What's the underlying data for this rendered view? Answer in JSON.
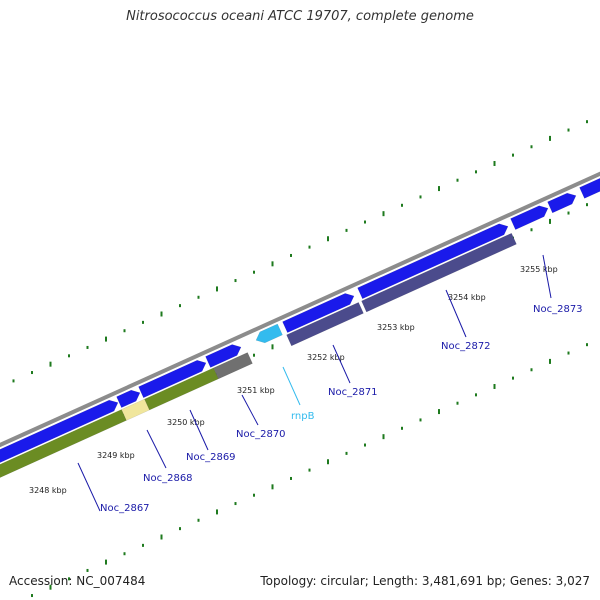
{
  "title": "Nitrosococcus oceani ATCC 19707, complete genome",
  "footer": {
    "accession": "Accession: NC_007484",
    "summary": "Topology: circular; Length: 3,481,691 bp; Genes: 3,027"
  },
  "colors": {
    "backbone": "#8c8c8c",
    "forward_cds": "#1a1aeb",
    "reverse_cds": "#4b4b8c",
    "rrna_green": "#6b8c23",
    "pseudo_yellow": "#f0e69c",
    "grey_feature": "#707070",
    "ncrna": "#33bbee",
    "gene_label": "#1a1aa8",
    "ncrna_label": "#33bbee",
    "gc_tick": "#1e7a1e"
  },
  "kbp_labels": [
    "3248 kbp",
    "3249 kbp",
    "3250 kbp",
    "3251 kbp",
    "3252 kbp",
    "3253 kbp",
    "3254 kbp",
    "3255 kbp"
  ],
  "gene_labels": [
    "Noc_2867",
    "Noc_2868",
    "Noc_2869",
    "Noc_2870",
    "rnpB",
    "Noc_2871",
    "Noc_2872",
    "Noc_2873"
  ]
}
